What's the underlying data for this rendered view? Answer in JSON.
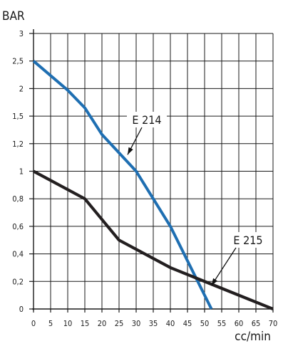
{
  "chart_data": {
    "type": "line",
    "ylabel": "BAR",
    "xlabel": "cc/min",
    "xlim": [
      0,
      70
    ],
    "ylim": [
      0,
      3
    ],
    "grid": true,
    "x_ticks": [
      0,
      5,
      10,
      15,
      20,
      25,
      30,
      35,
      40,
      45,
      50,
      55,
      60,
      65,
      70
    ],
    "x_tick_labels": [
      "0",
      "5",
      "10",
      "15",
      "20",
      "25",
      "30",
      "35",
      "40",
      "45",
      "50",
      "55",
      "60",
      "65",
      "70"
    ],
    "y_ticks": [
      0,
      0.2,
      0.4,
      0.6,
      0.8,
      1,
      1.2,
      1.5,
      2,
      2.5,
      3
    ],
    "y_tick_labels": [
      "0",
      "0,2",
      "0,4",
      "0,6",
      "0,8",
      "1",
      "1,2",
      "1,5",
      "2",
      "2,5",
      "3"
    ],
    "series": [
      {
        "name": "E 214",
        "color": "#1f6fb2",
        "points": [
          [
            0,
            2.5
          ],
          [
            10,
            1.97
          ],
          [
            15,
            1.65
          ],
          [
            20,
            1.3
          ],
          [
            30,
            1.0
          ],
          [
            35,
            0.8
          ],
          [
            40,
            0.6
          ],
          [
            45,
            0.35
          ],
          [
            52,
            0.0
          ]
        ]
      },
      {
        "name": "E 215",
        "color": "#231f20",
        "points": [
          [
            0,
            1.0
          ],
          [
            15,
            0.8
          ],
          [
            25,
            0.5
          ],
          [
            40,
            0.3
          ],
          [
            55,
            0.15
          ],
          [
            70,
            0.0
          ]
        ]
      }
    ],
    "annotations": [
      {
        "text": "E 214",
        "series": 0,
        "target": [
          27.5,
          1.12
        ]
      },
      {
        "text": "E 215",
        "series": 1,
        "target": [
          52,
          0.17
        ]
      }
    ]
  }
}
